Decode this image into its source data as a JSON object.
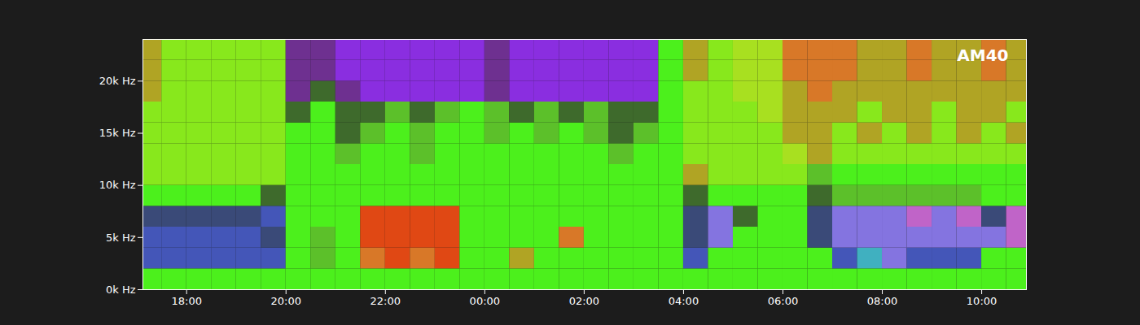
{
  "chart_data": {
    "type": "heatmap",
    "title": "AM40",
    "time_edges": [
      17,
      17.5,
      18,
      18.5,
      19,
      19.5,
      20,
      20.5,
      21,
      21.5,
      22,
      22.5,
      23,
      23.5,
      24,
      24.5,
      25,
      25.5,
      26,
      26.5,
      27,
      27.5,
      28,
      28.5,
      29,
      29.5,
      30,
      30.5,
      31,
      31.5,
      32,
      32.5,
      33,
      33.5,
      34,
      34.5,
      35
    ],
    "freq_edges": [
      0,
      2000,
      4000,
      6000,
      8000,
      10000,
      12000,
      14000,
      16000,
      18000,
      20000,
      22000,
      24000
    ],
    "cells": [
      [
        "#4cf01c",
        "#4cf01c",
        "#4cf01c",
        "#4cf01c",
        "#4cf01c",
        "#4cf01c",
        "#4cf01c",
        "#4cf01c",
        "#4cf01c",
        "#4cf01c",
        "#4cf01c",
        "#4cf01c",
        "#4cf01c",
        "#4cf01c",
        "#4cf01c",
        "#4cf01c",
        "#4cf01c",
        "#4cf01c",
        "#4cf01c",
        "#4cf01c",
        "#4cf01c",
        "#4cf01c",
        "#4cf01c",
        "#4cf01c",
        "#4cf01c",
        "#4cf01c",
        "#4cf01c",
        "#4cf01c",
        "#4cf01c",
        "#4cf01c",
        "#4cf01c",
        "#4cf01c",
        "#4cf01c",
        "#4cf01c",
        "#4cf01c",
        "#4cf01c"
      ],
      [
        "#4456b8",
        "#4456b8",
        "#4456b8",
        "#4456b8",
        "#4456b8",
        "#4456b8",
        "#4cf01c",
        "#5cc02a",
        "#4cf01c",
        "#d87828",
        "#e04814",
        "#d87828",
        "#e04814",
        "#4cf01c",
        "#4cf01c",
        "#b0a424",
        "#4cf01c",
        "#4cf01c",
        "#4cf01c",
        "#4cf01c",
        "#4cf01c",
        "#4cf01c",
        "#4456b8",
        "#4cf01c",
        "#4cf01c",
        "#4cf01c",
        "#4cf01c",
        "#4cf01c",
        "#4456b8",
        "#40b0c0",
        "#8474e0",
        "#4456b8",
        "#4456b8",
        "#4456b8",
        "#4cf01c",
        "#4cf01c"
      ],
      [
        "#4456b8",
        "#4456b8",
        "#4456b8",
        "#4456b8",
        "#4456b8",
        "#3a4a78",
        "#4cf01c",
        "#5cc02a",
        "#4cf01c",
        "#e04814",
        "#e04814",
        "#e04814",
        "#e04814",
        "#4cf01c",
        "#4cf01c",
        "#4cf01c",
        "#4cf01c",
        "#d87828",
        "#4cf01c",
        "#4cf01c",
        "#4cf01c",
        "#4cf01c",
        "#3a4a78",
        "#8474e0",
        "#4cf01c",
        "#4cf01c",
        "#4cf01c",
        "#3a4a78",
        "#8474e0",
        "#8474e0",
        "#8474e0",
        "#8474e0",
        "#8474e0",
        "#8474e0",
        "#8474e0",
        "#c064c8"
      ],
      [
        "#3a4a78",
        "#3a4a78",
        "#3a4a78",
        "#3a4a78",
        "#3a4a78",
        "#4456b8",
        "#4cf01c",
        "#4cf01c",
        "#4cf01c",
        "#e04814",
        "#e04814",
        "#e04814",
        "#e04814",
        "#4cf01c",
        "#4cf01c",
        "#4cf01c",
        "#4cf01c",
        "#4cf01c",
        "#4cf01c",
        "#4cf01c",
        "#4cf01c",
        "#4cf01c",
        "#3a4a78",
        "#8474e0",
        "#3e6a2c",
        "#4cf01c",
        "#4cf01c",
        "#3a4a78",
        "#8474e0",
        "#8474e0",
        "#8474e0",
        "#c064c8",
        "#8474e0",
        "#c064c8",
        "#3a4a78",
        "#c064c8"
      ],
      [
        "#4cf01c",
        "#4cf01c",
        "#4cf01c",
        "#4cf01c",
        "#4cf01c",
        "#3e6a2c",
        "#4cf01c",
        "#4cf01c",
        "#4cf01c",
        "#4cf01c",
        "#4cf01c",
        "#4cf01c",
        "#4cf01c",
        "#4cf01c",
        "#4cf01c",
        "#4cf01c",
        "#4cf01c",
        "#4cf01c",
        "#4cf01c",
        "#4cf01c",
        "#4cf01c",
        "#4cf01c",
        "#3e6a2c",
        "#4cf01c",
        "#4cf01c",
        "#4cf01c",
        "#4cf01c",
        "#3e6a2c",
        "#5cc02a",
        "#5cc02a",
        "#5cc02a",
        "#5cc02a",
        "#5cc02a",
        "#5cc02a",
        "#4cf01c",
        "#4cf01c"
      ],
      [
        "#88e81c",
        "#88e81c",
        "#88e81c",
        "#88e81c",
        "#88e81c",
        "#88e81c",
        "#4cf01c",
        "#4cf01c",
        "#4cf01c",
        "#4cf01c",
        "#4cf01c",
        "#4cf01c",
        "#4cf01c",
        "#4cf01c",
        "#4cf01c",
        "#4cf01c",
        "#4cf01c",
        "#4cf01c",
        "#4cf01c",
        "#4cf01c",
        "#4cf01c",
        "#4cf01c",
        "#b0a424",
        "#88e81c",
        "#88e81c",
        "#88e81c",
        "#88e81c",
        "#5cc02a",
        "#4cf01c",
        "#4cf01c",
        "#4cf01c",
        "#4cf01c",
        "#4cf01c",
        "#4cf01c",
        "#4cf01c",
        "#4cf01c"
      ],
      [
        "#88e81c",
        "#88e81c",
        "#88e81c",
        "#88e81c",
        "#88e81c",
        "#88e81c",
        "#4cf01c",
        "#4cf01c",
        "#5cc02a",
        "#4cf01c",
        "#4cf01c",
        "#5cc02a",
        "#4cf01c",
        "#4cf01c",
        "#4cf01c",
        "#4cf01c",
        "#4cf01c",
        "#4cf01c",
        "#4cf01c",
        "#5cc02a",
        "#4cf01c",
        "#4cf01c",
        "#88e81c",
        "#88e81c",
        "#88e81c",
        "#88e81c",
        "#a8e020",
        "#b0a424",
        "#88e81c",
        "#88e81c",
        "#88e81c",
        "#88e81c",
        "#88e81c",
        "#88e81c",
        "#88e81c",
        "#88e81c"
      ],
      [
        "#88e81c",
        "#88e81c",
        "#88e81c",
        "#88e81c",
        "#88e81c",
        "#88e81c",
        "#4cf01c",
        "#4cf01c",
        "#3e6a2c",
        "#5cc02a",
        "#4cf01c",
        "#5cc02a",
        "#4cf01c",
        "#4cf01c",
        "#5cc02a",
        "#4cf01c",
        "#5cc02a",
        "#4cf01c",
        "#5cc02a",
        "#3e6a2c",
        "#5cc02a",
        "#4cf01c",
        "#88e81c",
        "#88e81c",
        "#88e81c",
        "#88e81c",
        "#b0a424",
        "#b0a424",
        "#88e81c",
        "#b0a424",
        "#88e81c",
        "#b0a424",
        "#88e81c",
        "#b0a424",
        "#88e81c",
        "#b0a424"
      ],
      [
        "#88e81c",
        "#88e81c",
        "#88e81c",
        "#88e81c",
        "#88e81c",
        "#88e81c",
        "#3e6a2c",
        "#4cf01c",
        "#3e6a2c",
        "#3e6a2c",
        "#5cc02a",
        "#3e6a2c",
        "#5cc02a",
        "#4cf01c",
        "#5cc02a",
        "#3e6a2c",
        "#5cc02a",
        "#3e6a2c",
        "#5cc02a",
        "#3e6a2c",
        "#3e6a2c",
        "#4cf01c",
        "#88e81c",
        "#88e81c",
        "#88e81c",
        "#a8e020",
        "#b0a424",
        "#b0a424",
        "#b0a424",
        "#88e81c",
        "#b0a424",
        "#b0a424",
        "#88e81c",
        "#b0a424",
        "#b0a424",
        "#88e81c"
      ],
      [
        "#b0a424",
        "#88e81c",
        "#88e81c",
        "#88e81c",
        "#88e81c",
        "#88e81c",
        "#6e3090",
        "#3e6a2c",
        "#6e3090",
        "#8a2ee0",
        "#8a2ee0",
        "#8a2ee0",
        "#8a2ee0",
        "#8a2ee0",
        "#6e3090",
        "#8a2ee0",
        "#8a2ee0",
        "#8a2ee0",
        "#8a2ee0",
        "#8a2ee0",
        "#8a2ee0",
        "#4cf01c",
        "#88e81c",
        "#88e81c",
        "#a8e020",
        "#a8e020",
        "#b0a424",
        "#d87828",
        "#b0a424",
        "#b0a424",
        "#b0a424",
        "#b0a424",
        "#b0a424",
        "#b0a424",
        "#b0a424",
        "#b0a424"
      ],
      [
        "#b0a424",
        "#88e81c",
        "#88e81c",
        "#88e81c",
        "#88e81c",
        "#88e81c",
        "#6e3090",
        "#6e3090",
        "#8a2ee0",
        "#8a2ee0",
        "#8a2ee0",
        "#8a2ee0",
        "#8a2ee0",
        "#8a2ee0",
        "#6e3090",
        "#8a2ee0",
        "#8a2ee0",
        "#8a2ee0",
        "#8a2ee0",
        "#8a2ee0",
        "#8a2ee0",
        "#4cf01c",
        "#b0a424",
        "#88e81c",
        "#a8e020",
        "#a8e020",
        "#d87828",
        "#d87828",
        "#d87828",
        "#b0a424",
        "#b0a424",
        "#d87828",
        "#b0a424",
        "#b0a424",
        "#d87828",
        "#b0a424"
      ],
      [
        "#b0a424",
        "#88e81c",
        "#88e81c",
        "#88e81c",
        "#88e81c",
        "#88e81c",
        "#6e3090",
        "#6e3090",
        "#8a2ee0",
        "#8a2ee0",
        "#8a2ee0",
        "#8a2ee0",
        "#8a2ee0",
        "#8a2ee0",
        "#6e3090",
        "#8a2ee0",
        "#8a2ee0",
        "#8a2ee0",
        "#8a2ee0",
        "#8a2ee0",
        "#8a2ee0",
        "#4cf01c",
        "#b0a424",
        "#88e81c",
        "#a8e020",
        "#a8e020",
        "#d87828",
        "#d87828",
        "#d87828",
        "#b0a424",
        "#b0a424",
        "#d87828",
        "#b0a424",
        "#b0a424",
        "#d87828",
        "#b0a424"
      ]
    ],
    "xlim": [
      17.12,
      34.9
    ],
    "xticks": [
      {
        "value": 18,
        "label": "18:00"
      },
      {
        "value": 20,
        "label": "20:00"
      },
      {
        "value": 22,
        "label": "22:00"
      },
      {
        "value": 24,
        "label": "00:00"
      },
      {
        "value": 26,
        "label": "02:00"
      },
      {
        "value": 28,
        "label": "04:00"
      },
      {
        "value": 30,
        "label": "06:00"
      },
      {
        "value": 32,
        "label": "08:00"
      },
      {
        "value": 34,
        "label": "10:00"
      }
    ],
    "ylim": [
      0,
      24000
    ],
    "yticks": [
      {
        "value": 0,
        "label": "0k Hz"
      },
      {
        "value": 5000,
        "label": "5k Hz"
      },
      {
        "value": 10000,
        "label": "10k Hz"
      },
      {
        "value": 15000,
        "label": "15k Hz"
      },
      {
        "value": 20000,
        "label": "20k Hz"
      }
    ],
    "grid": false
  }
}
